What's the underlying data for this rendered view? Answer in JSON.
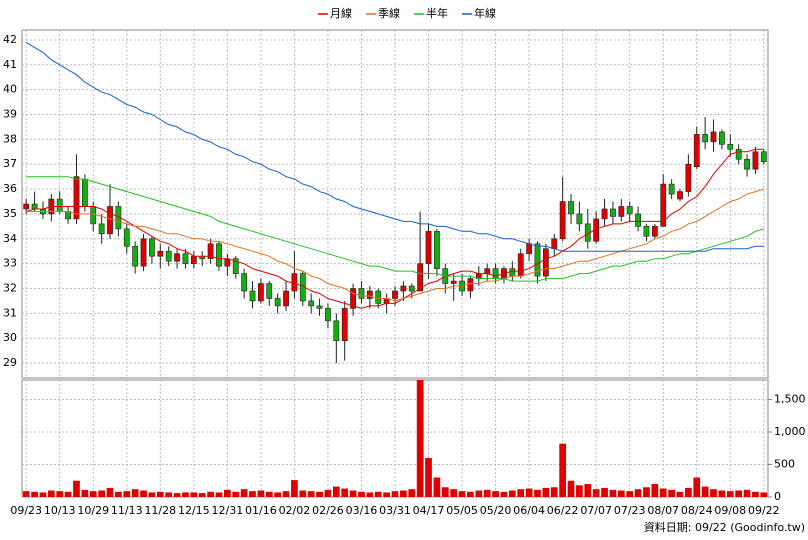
{
  "chart_data": [
    {
      "type": "candlestick",
      "legend": "top",
      "grid": true,
      "up_color": "#e00000",
      "down_color": "#10b010",
      "ylim": [
        28.4,
        42.4
      ],
      "yticks": [
        29,
        30,
        31,
        32,
        33,
        34,
        35,
        36,
        37,
        38,
        39,
        40,
        41,
        42
      ],
      "open": [
        35.2,
        35.4,
        35.2,
        35.0,
        35.6,
        35.1,
        34.8,
        36.4,
        35.3,
        34.6,
        34.2,
        35.3,
        34.4,
        33.7,
        32.9,
        34.0,
        33.3,
        33.5,
        33.1,
        33.4,
        33.0,
        33.3,
        33.2,
        33.8,
        32.9,
        33.2,
        32.6,
        31.9,
        31.5,
        32.2,
        31.6,
        31.3,
        31.9,
        32.6,
        31.5,
        31.3,
        31.2,
        30.7,
        29.9,
        31.2,
        32.0,
        31.6,
        31.9,
        31.4,
        31.6,
        31.9,
        32.1,
        31.9,
        33.0,
        34.3,
        32.8,
        32.2,
        32.3,
        31.9,
        32.4,
        32.6,
        32.8,
        32.4,
        32.8,
        32.5,
        33.4,
        33.8,
        32.5,
        33.6,
        34.0,
        35.5,
        35.0,
        34.6,
        33.9,
        34.8,
        35.2,
        34.9,
        35.3,
        35.0,
        34.5,
        34.1,
        34.5,
        36.2,
        35.6,
        35.9,
        36.9,
        38.2,
        37.9,
        38.3,
        37.8,
        37.6,
        37.2,
        36.8,
        37.5
      ],
      "high": [
        35.6,
        35.9,
        35.5,
        35.8,
        35.9,
        35.3,
        37.4,
        36.6,
        35.5,
        35.0,
        36.2,
        35.5,
        34.6,
        33.9,
        34.2,
        34.1,
        33.8,
        33.7,
        33.6,
        33.6,
        33.5,
        33.5,
        34.0,
        33.9,
        33.4,
        33.3,
        32.8,
        32.3,
        32.4,
        32.3,
        31.8,
        32.3,
        33.5,
        32.7,
        31.8,
        31.6,
        31.4,
        31.0,
        31.5,
        32.2,
        32.3,
        32.1,
        32.0,
        31.8,
        32.1,
        32.3,
        32.2,
        35.1,
        34.6,
        34.4,
        33.0,
        32.6,
        32.6,
        32.5,
        32.9,
        33.0,
        33.0,
        32.9,
        33.1,
        33.6,
        34.0,
        33.9,
        33.8,
        34.2,
        36.5,
        35.8,
        35.5,
        35.2,
        35.1,
        35.6,
        35.5,
        35.6,
        35.5,
        35.3,
        34.6,
        34.6,
        36.6,
        36.4,
        36.0,
        37.4,
        38.5,
        38.9,
        38.8,
        38.4,
        38.2,
        37.8,
        37.4,
        37.7,
        37.6
      ],
      "low": [
        35.0,
        35.1,
        34.8,
        34.7,
        35.0,
        34.6,
        34.6,
        35.1,
        34.3,
        33.8,
        34.0,
        34.1,
        33.4,
        32.6,
        32.7,
        33.0,
        32.8,
        32.9,
        32.8,
        32.8,
        32.8,
        32.9,
        33.0,
        32.7,
        32.5,
        32.4,
        31.6,
        31.2,
        31.4,
        31.3,
        31.0,
        31.1,
        31.6,
        31.3,
        31.0,
        30.9,
        30.4,
        29.0,
        29.1,
        30.9,
        31.4,
        31.2,
        31.2,
        31.0,
        31.3,
        31.5,
        31.6,
        31.9,
        32.4,
        32.5,
        31.8,
        31.5,
        31.7,
        31.6,
        32.1,
        32.3,
        32.2,
        32.2,
        32.3,
        32.4,
        33.1,
        32.2,
        32.3,
        33.3,
        33.9,
        34.6,
        34.3,
        33.6,
        33.8,
        34.5,
        34.6,
        34.7,
        34.7,
        34.3,
        33.9,
        34.0,
        34.5,
        35.6,
        35.5,
        35.7,
        36.8,
        37.6,
        37.5,
        37.6,
        37.3,
        37.0,
        36.5,
        36.6,
        37.0
      ],
      "close": [
        35.4,
        35.2,
        35.0,
        35.6,
        35.1,
        34.8,
        36.5,
        35.3,
        34.6,
        34.2,
        35.3,
        34.4,
        33.7,
        32.9,
        34.0,
        33.3,
        33.5,
        33.1,
        33.4,
        33.0,
        33.3,
        33.2,
        33.8,
        32.9,
        33.2,
        32.6,
        31.9,
        31.5,
        32.2,
        31.6,
        31.3,
        31.9,
        32.6,
        31.5,
        31.3,
        31.2,
        30.7,
        29.9,
        31.2,
        32.0,
        31.6,
        31.9,
        31.4,
        31.6,
        31.9,
        32.1,
        31.9,
        33.0,
        34.3,
        32.8,
        32.2,
        32.3,
        31.9,
        32.4,
        32.6,
        32.8,
        32.4,
        32.8,
        32.5,
        33.4,
        33.8,
        32.5,
        33.6,
        34.0,
        35.5,
        35.0,
        34.6,
        33.9,
        34.8,
        35.2,
        34.9,
        35.3,
        35.0,
        34.5,
        34.1,
        34.5,
        36.2,
        35.8,
        35.9,
        37.0,
        38.2,
        37.9,
        38.3,
        37.8,
        37.6,
        37.2,
        36.8,
        37.5,
        37.1
      ],
      "series": [
        {
          "name": "月線",
          "color": "#e00000",
          "values": [
            35.1,
            35.2,
            35.2,
            35.3,
            35.3,
            35.3,
            35.3,
            35.3,
            35.3,
            35.2,
            35.0,
            34.9,
            34.7,
            34.5,
            34.3,
            34.1,
            33.9,
            33.8,
            33.6,
            33.5,
            33.3,
            33.3,
            33.3,
            33.2,
            33.2,
            33.1,
            33.0,
            32.8,
            32.7,
            32.6,
            32.5,
            32.3,
            32.2,
            32.1,
            31.9,
            31.8,
            31.6,
            31.5,
            31.4,
            31.3,
            31.2,
            31.3,
            31.3,
            31.4,
            31.4,
            31.6,
            31.8,
            32.0,
            32.2,
            32.3,
            32.5,
            32.6,
            32.7,
            32.7,
            32.6,
            32.6,
            32.5,
            32.6,
            32.7,
            32.7,
            32.8,
            33.0,
            33.2,
            33.3,
            33.5,
            33.7,
            34.0,
            34.2,
            34.4,
            34.5,
            34.6,
            34.6,
            34.7,
            34.7,
            34.7,
            34.7,
            34.7,
            35.0,
            35.2,
            35.5,
            35.7,
            36.1,
            36.6,
            37.0,
            37.4,
            37.5,
            37.5,
            37.6,
            37.6
          ]
        },
        {
          "name": "季線",
          "color": "#e07020",
          "values": [
            35.1,
            35.1,
            35.1,
            35.1,
            35.1,
            35.1,
            35.0,
            35.0,
            35.0,
            34.9,
            34.8,
            34.7,
            34.6,
            34.5,
            34.5,
            34.4,
            34.3,
            34.2,
            34.2,
            34.1,
            34.0,
            34.0,
            33.9,
            33.9,
            33.8,
            33.7,
            33.6,
            33.5,
            33.4,
            33.3,
            33.1,
            33.0,
            32.8,
            32.7,
            32.5,
            32.4,
            32.2,
            32.1,
            32.0,
            31.8,
            31.7,
            31.7,
            31.6,
            31.6,
            31.5,
            31.6,
            31.7,
            31.8,
            31.9,
            32.0,
            32.0,
            32.1,
            32.1,
            32.2,
            32.2,
            32.3,
            32.3,
            32.4,
            32.5,
            32.5,
            32.6,
            32.7,
            32.8,
            32.8,
            32.9,
            33.0,
            33.1,
            33.1,
            33.2,
            33.3,
            33.4,
            33.5,
            33.6,
            33.7,
            33.8,
            34.0,
            34.1,
            34.3,
            34.4,
            34.6,
            34.7,
            34.9,
            35.1,
            35.3,
            35.5,
            35.6,
            35.8,
            35.9,
            36.0
          ]
        },
        {
          "name": "半年",
          "color": "#20c020",
          "values": [
            36.5,
            36.5,
            36.5,
            36.5,
            36.5,
            36.5,
            36.4,
            36.4,
            36.3,
            36.2,
            36.1,
            36.0,
            35.9,
            35.8,
            35.7,
            35.6,
            35.5,
            35.4,
            35.3,
            35.2,
            35.1,
            35.0,
            34.9,
            34.7,
            34.6,
            34.5,
            34.4,
            34.3,
            34.2,
            34.1,
            34.0,
            33.9,
            33.8,
            33.7,
            33.6,
            33.5,
            33.4,
            33.3,
            33.2,
            33.1,
            33.0,
            32.9,
            32.9,
            32.8,
            32.7,
            32.7,
            32.7,
            32.6,
            32.6,
            32.6,
            32.5,
            32.5,
            32.5,
            32.5,
            32.4,
            32.4,
            32.4,
            32.4,
            32.3,
            32.3,
            32.3,
            32.3,
            32.4,
            32.4,
            32.4,
            32.5,
            32.6,
            32.6,
            32.7,
            32.8,
            32.9,
            32.9,
            33.0,
            33.1,
            33.1,
            33.2,
            33.2,
            33.3,
            33.4,
            33.4,
            33.5,
            33.6,
            33.7,
            33.8,
            33.9,
            34.0,
            34.1,
            34.3,
            34.4
          ]
        },
        {
          "name": "年線",
          "color": "#1060d0",
          "values": [
            41.9,
            41.7,
            41.5,
            41.2,
            41.0,
            40.8,
            40.6,
            40.3,
            40.1,
            39.9,
            39.8,
            39.6,
            39.4,
            39.3,
            39.1,
            39.0,
            38.8,
            38.6,
            38.5,
            38.3,
            38.2,
            38.0,
            37.9,
            37.7,
            37.6,
            37.4,
            37.3,
            37.1,
            37.0,
            36.8,
            36.7,
            36.5,
            36.4,
            36.2,
            36.1,
            35.9,
            35.8,
            35.6,
            35.5,
            35.3,
            35.2,
            35.1,
            35.0,
            34.9,
            34.8,
            34.7,
            34.7,
            34.6,
            34.6,
            34.5,
            34.5,
            34.4,
            34.3,
            34.3,
            34.2,
            34.2,
            34.1,
            34.0,
            34.0,
            33.9,
            33.8,
            33.7,
            33.7,
            33.6,
            33.5,
            33.5,
            33.5,
            33.5,
            33.5,
            33.5,
            33.5,
            33.5,
            33.5,
            33.5,
            33.5,
            33.5,
            33.5,
            33.5,
            33.5,
            33.5,
            33.5,
            33.5,
            33.6,
            33.6,
            33.6,
            33.6,
            33.6,
            33.7,
            33.7
          ]
        }
      ]
    },
    {
      "type": "bar",
      "color": "#e00000",
      "grid": true,
      "ylim": [
        0,
        1800
      ],
      "yticks": [
        0,
        500,
        {
          "value": 1000,
          "label": "1,000"
        },
        {
          "value": 1500,
          "label": "1,500"
        }
      ],
      "categories": [
        "09/23",
        null,
        null,
        null,
        "10/13",
        null,
        null,
        null,
        "10/29",
        null,
        null,
        null,
        "11/13",
        null,
        null,
        null,
        "11/28",
        null,
        null,
        null,
        "12/15",
        null,
        null,
        null,
        "12/31",
        null,
        null,
        null,
        "01/16",
        null,
        null,
        null,
        "02/02",
        null,
        null,
        null,
        "02/26",
        null,
        null,
        null,
        "03/16",
        null,
        null,
        null,
        "03/31",
        null,
        null,
        null,
        "04/17",
        null,
        null,
        null,
        "05/05",
        null,
        null,
        null,
        "05/20",
        null,
        null,
        null,
        "06/04",
        null,
        null,
        null,
        "06/22",
        null,
        null,
        null,
        "07/07",
        null,
        null,
        null,
        "07/23",
        null,
        null,
        null,
        "08/07",
        null,
        null,
        null,
        "08/24",
        null,
        null,
        null,
        "09/08",
        null,
        null,
        null,
        "09/22"
      ],
      "values": [
        90,
        80,
        70,
        100,
        90,
        80,
        250,
        110,
        90,
        100,
        140,
        80,
        90,
        120,
        100,
        70,
        80,
        70,
        60,
        70,
        70,
        60,
        80,
        70,
        110,
        80,
        120,
        90,
        100,
        80,
        70,
        90,
        260,
        100,
        90,
        80,
        110,
        160,
        130,
        100,
        80,
        70,
        80,
        70,
        90,
        100,
        120,
        1800,
        600,
        300,
        150,
        120,
        90,
        80,
        100,
        110,
        90,
        80,
        100,
        120,
        130,
        110,
        140,
        150,
        820,
        250,
        180,
        200,
        120,
        140,
        110,
        100,
        90,
        120,
        150,
        200,
        130,
        110,
        80,
        140,
        300,
        160,
        120,
        100,
        90,
        100,
        110,
        80,
        70
      ]
    }
  ],
  "footer": "資料日期: 09/22  (Goodinfo.tw)"
}
